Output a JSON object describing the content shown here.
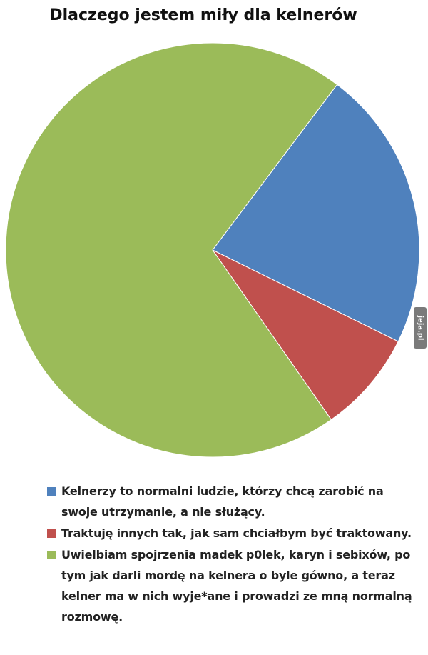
{
  "chart_data": {
    "type": "pie",
    "title": "Dlaczego jestem miły dla kelnerów",
    "categories": [
      "Kelnerzy to normalni ludzie, którzy chcą zarobić na swoje utrzymanie, a nie służący.",
      "Traktuję innych tak, jak sam chciałbym być traktowany.",
      "Uwielbiam spojrzenia madek p0lek, karyn i sebixów, po tym jak darli mordę na kelnera o byle gówno, a teraz kelner ma w nich wyje*ane i prowadzi ze mną normalną rozmowę."
    ],
    "values": [
      22,
      8,
      70
    ],
    "colors": [
      "#4f81bd",
      "#c0504d",
      "#9bbb59"
    ]
  },
  "watermark": "jeja.pl"
}
